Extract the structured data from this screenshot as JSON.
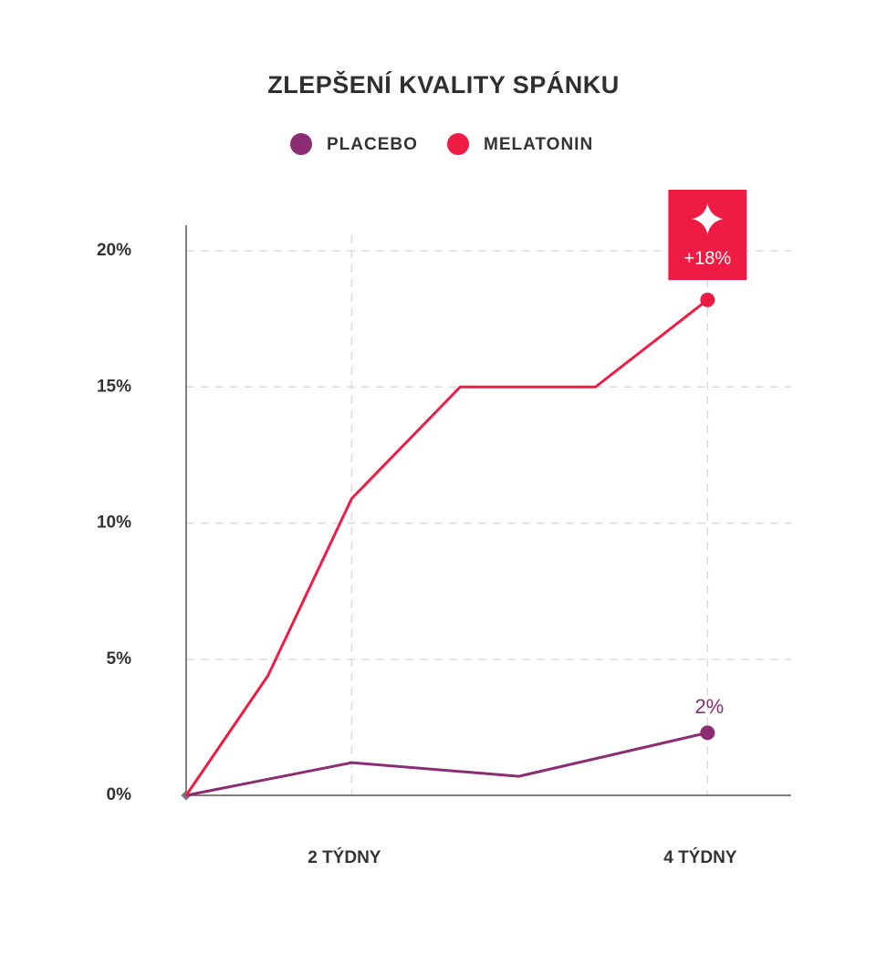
{
  "chart_data": {
    "type": "line",
    "title": "ZLEPŠENÍ KVALITY SPÁNKU",
    "xlim": [
      1.07,
      4.47
    ],
    "xticks": [
      {
        "value": 2,
        "label": "2 TÝDNY"
      },
      {
        "value": 4,
        "label": "4 TÝDNY"
      }
    ],
    "ylim": [
      0,
      20
    ],
    "yticks": [
      {
        "value": 0,
        "label": "0%"
      },
      {
        "value": 5,
        "label": "5%"
      },
      {
        "value": 10,
        "label": "10%"
      },
      {
        "value": 15,
        "label": "15%"
      },
      {
        "value": 20,
        "label": "20%"
      }
    ],
    "grid": true,
    "series": [
      {
        "name": "PLACEBO",
        "color": "#8b2c74",
        "x": [
          1.07,
          2,
          2.94,
          4
        ],
        "values": [
          0,
          1.2,
          0.7,
          2.3
        ],
        "value_labels": [
          null,
          null,
          null,
          "2%"
        ]
      },
      {
        "name": "MELATONIN",
        "color": "#ee1c45",
        "x": [
          1.07,
          1.53,
          2,
          2.61,
          3.37,
          4
        ],
        "values": [
          0,
          4.4,
          10.9,
          15,
          15,
          18.2
        ],
        "value_labels": [
          null,
          null,
          null,
          null,
          null,
          "+18%"
        ]
      }
    ]
  }
}
